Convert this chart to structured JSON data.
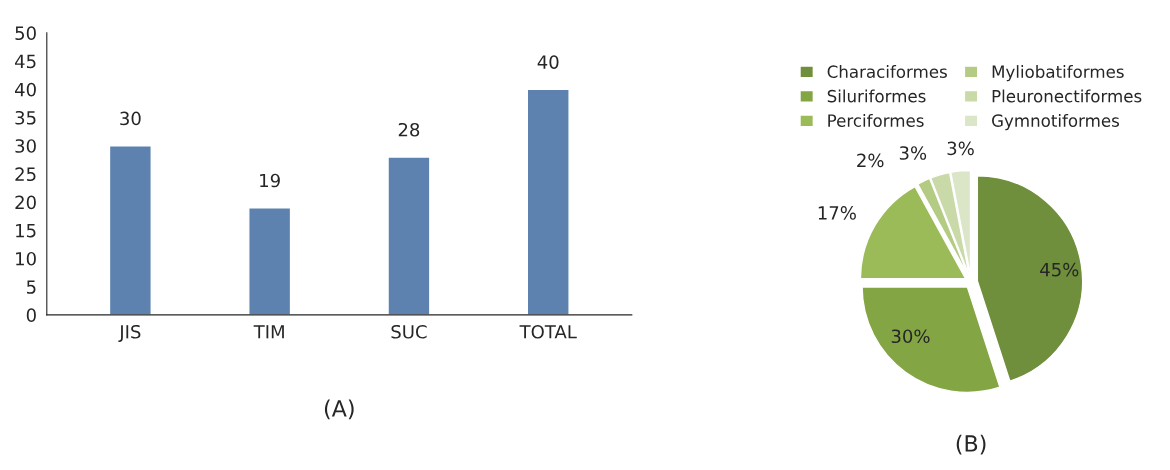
{
  "chart_data": [
    {
      "type": "bar",
      "categories": [
        "JIS",
        "TIM",
        "SUC",
        "TOTAL"
      ],
      "values": [
        30,
        19,
        28,
        40
      ],
      "color": "#4f81bd",
      "ylim": [
        0,
        50
      ],
      "yticks": [
        0,
        5,
        10,
        15,
        20,
        25,
        30,
        35,
        40,
        45,
        50
      ],
      "data_labels": true,
      "grid": false,
      "annotations": [
        "(A)"
      ]
    },
    {
      "type": "pie",
      "categories": [
        "Characiformes",
        "Siluriformes",
        "Perciformes",
        "Myliobatiformes",
        "Pleuronectiformes",
        "Gymnotiformes"
      ],
      "values": [
        45,
        30,
        17,
        2,
        3,
        3
      ],
      "colors": [
        "#6f8f3c",
        "#83a543",
        "#9bbb59",
        "#b4cb84",
        "#c9d9a8",
        "#dbe5c7"
      ],
      "value_labels": [
        "45%",
        "30%",
        "17%",
        "2%",
        "3%",
        "3%"
      ],
      "legend": "top",
      "annotations": [
        "(B)"
      ]
    }
  ]
}
